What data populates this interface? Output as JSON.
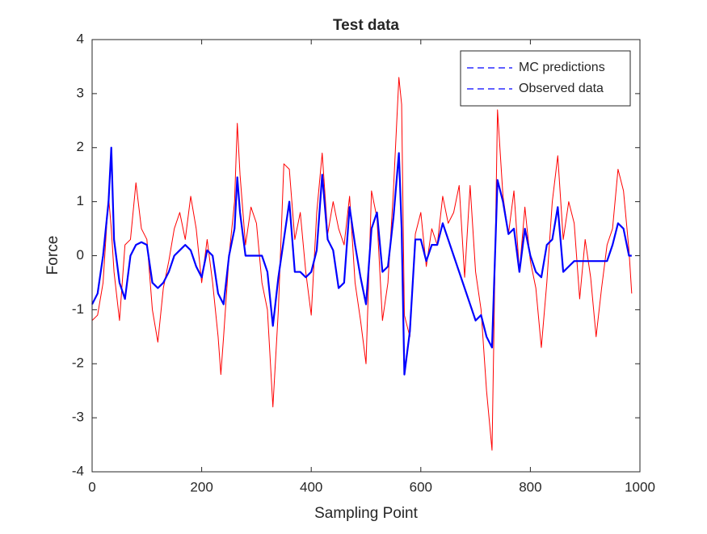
{
  "chart_data": {
    "type": "line",
    "title": "Test data",
    "xlabel": "Sampling Point",
    "ylabel": "Force",
    "x": [
      0,
      10,
      20,
      30,
      35,
      40,
      50,
      60,
      70,
      80,
      90,
      100,
      110,
      120,
      130,
      140,
      150,
      160,
      170,
      180,
      190,
      200,
      210,
      220,
      230,
      235,
      240,
      250,
      260,
      265,
      270,
      280,
      290,
      300,
      310,
      320,
      330,
      340,
      350,
      360,
      370,
      380,
      390,
      400,
      410,
      420,
      430,
      440,
      450,
      460,
      470,
      480,
      490,
      500,
      510,
      520,
      530,
      540,
      550,
      560,
      565,
      570,
      580,
      590,
      600,
      610,
      620,
      630,
      640,
      650,
      660,
      670,
      680,
      690,
      700,
      710,
      720,
      730,
      740,
      750,
      760,
      770,
      780,
      790,
      800,
      810,
      820,
      830,
      840,
      850,
      860,
      870,
      880,
      890,
      900,
      910,
      920,
      930,
      940,
      950,
      960,
      970,
      980,
      985
    ],
    "series": [
      {
        "name": "MC predictions",
        "color": "#0000ff",
        "legend_color": "#0000ff",
        "values": [
          -0.9,
          -0.7,
          0.0,
          1.0,
          2.0,
          0.3,
          -0.5,
          -0.8,
          0.0,
          0.2,
          0.25,
          0.2,
          -0.5,
          -0.6,
          -0.5,
          -0.3,
          0.0,
          0.1,
          0.2,
          0.1,
          -0.2,
          -0.4,
          0.1,
          0.0,
          -0.7,
          -0.8,
          -0.9,
          0.0,
          0.5,
          1.45,
          0.8,
          0.0,
          0.0,
          0.0,
          0.0,
          -0.3,
          -1.3,
          -0.4,
          0.3,
          1.0,
          -0.3,
          -0.3,
          -0.4,
          -0.3,
          0.1,
          1.5,
          0.3,
          0.1,
          -0.6,
          -0.5,
          0.9,
          0.2,
          -0.4,
          -0.9,
          0.5,
          0.8,
          -0.3,
          -0.2,
          0.7,
          1.9,
          0.5,
          -2.2,
          -1.4,
          0.3,
          0.3,
          -0.1,
          0.2,
          0.2,
          0.6,
          0.3,
          0.0,
          -0.3,
          -0.6,
          -0.9,
          -1.2,
          -1.1,
          -1.5,
          -1.7,
          1.4,
          1.0,
          0.4,
          0.5,
          -0.3,
          0.5,
          0.0,
          -0.3,
          -0.4,
          0.2,
          0.3,
          0.9,
          -0.3,
          -0.2,
          -0.1,
          -0.1,
          -0.1,
          -0.1,
          -0.1,
          -0.1,
          -0.1,
          0.2,
          0.6,
          0.5,
          0.0,
          0.0
        ]
      },
      {
        "name": "Observed data",
        "color": "#ff0000",
        "legend_color": "#0000ff",
        "values": [
          -1.2,
          -1.1,
          -0.5,
          1.1,
          0.5,
          -0.3,
          -1.2,
          0.2,
          0.3,
          1.35,
          0.5,
          0.3,
          -1.0,
          -1.6,
          -0.6,
          -0.1,
          0.5,
          0.8,
          0.3,
          1.1,
          0.5,
          -0.5,
          0.3,
          -0.5,
          -1.5,
          -2.2,
          -1.5,
          0.0,
          1.0,
          2.45,
          1.5,
          0.2,
          0.9,
          0.6,
          -0.5,
          -1.0,
          -2.8,
          -1.0,
          1.7,
          1.6,
          0.3,
          0.8,
          -0.3,
          -1.1,
          0.8,
          1.9,
          0.4,
          1.0,
          0.5,
          0.2,
          1.1,
          -0.5,
          -1.2,
          -2.0,
          1.2,
          0.7,
          -1.2,
          -0.5,
          1.2,
          3.3,
          2.8,
          -1.1,
          -1.5,
          0.4,
          0.8,
          -0.2,
          0.5,
          0.2,
          1.1,
          0.6,
          0.8,
          1.3,
          -0.4,
          1.3,
          -0.3,
          -1.0,
          -2.5,
          -3.6,
          2.7,
          1.1,
          0.4,
          1.2,
          -0.3,
          0.9,
          -0.1,
          -0.6,
          -1.7,
          -0.5,
          1.0,
          1.85,
          0.3,
          1.0,
          0.6,
          -0.8,
          0.3,
          -0.4,
          -1.5,
          -0.6,
          0.2,
          0.5,
          1.6,
          1.2,
          0.1,
          -0.7
        ]
      }
    ],
    "xlim": [
      0,
      1000
    ],
    "xticks": [
      0,
      200,
      400,
      600,
      800,
      1000
    ],
    "ylim": [
      -4,
      4
    ],
    "yticks": [
      -4,
      -3,
      -2,
      -1,
      0,
      1,
      2,
      3,
      4
    ],
    "legend": "northeast"
  }
}
